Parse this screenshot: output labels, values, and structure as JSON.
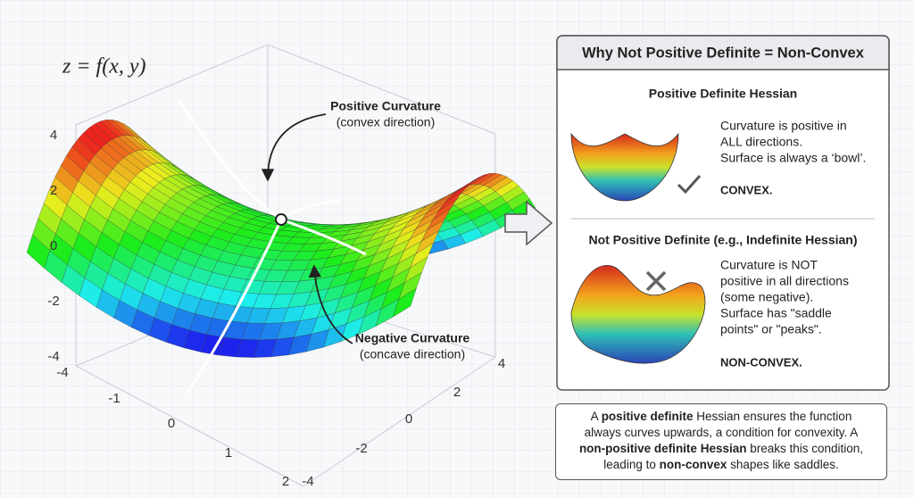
{
  "plot": {
    "formula": "z = f(x, y)",
    "z_ticks": [
      "4",
      "2",
      "0",
      "-2",
      "-4"
    ],
    "x_ticks": [
      "-4",
      "-1",
      "0",
      "1",
      "2"
    ],
    "y_ticks": [
      "4",
      "2",
      "0",
      "-2",
      "-4"
    ],
    "annotations": [
      {
        "title": "Positive Curvature",
        "subtitle": "(convex direction)"
      },
      {
        "title": "Negative Curvature",
        "subtitle": "(concave direction)"
      }
    ]
  },
  "panel": {
    "title": "Why Not Positive Definite = Non-Convex",
    "sections": [
      {
        "heading": "Positive Definite Hessian",
        "description": [
          "Curvature is positive in",
          "ALL directions.",
          "Surface is always a ‘bowl’."
        ],
        "verdict": "CONVEX."
      },
      {
        "heading": "Not Positive Definite (e.g., Indefinite Hessian)",
        "description": [
          "Curvature is NOT",
          "positive in all directions",
          "(some negative).",
          "Surface has \"saddle",
          "points\" or \"peaks\"."
        ],
        "verdict": "NON-CONVEX."
      }
    ]
  },
  "note": {
    "lines": [
      [
        {
          "text": "A ",
          "bold": false
        },
        {
          "text": "positive definite",
          "bold": true
        },
        {
          "text": " Hessian ensures the function",
          "bold": false
        }
      ],
      [
        {
          "text": "always curves upwards, a condition for convexity. A",
          "bold": false
        }
      ],
      [
        {
          "text": "non-positive definite Hessian",
          "bold": true
        },
        {
          "text": " breaks this condition,",
          "bold": false
        }
      ],
      [
        {
          "text": "leading to ",
          "bold": false
        },
        {
          "text": "non-convex",
          "bold": true
        },
        {
          "text": " shapes like saddles.",
          "bold": false
        }
      ]
    ]
  }
}
